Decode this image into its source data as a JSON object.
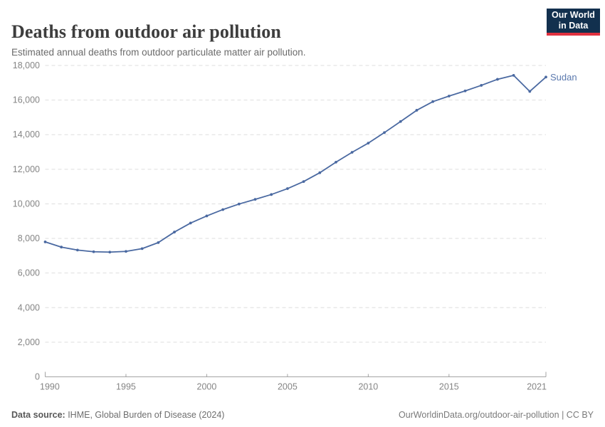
{
  "header": {
    "title": "Deaths from outdoor air pollution",
    "subtitle": "Estimated annual deaths from outdoor particulate matter air pollution."
  },
  "logo": {
    "line1": "Our World",
    "line2": "in Data"
  },
  "footer": {
    "datasource_label": "Data source:",
    "datasource_text": " IHME, Global Burden of Disease (2024)",
    "link_text": "OurWorldinData.org/outdoor-air-pollution",
    "separator": " | ",
    "license_text": "CC BY"
  },
  "colors": {
    "line": "#4a69a1",
    "marker": "#4a69a1",
    "entity_label": "#5b79ae",
    "grid": "#dedede",
    "axis": "#a3a3a3",
    "tick_label": "#858585",
    "logo_bg": "#12304e",
    "logo_accent": "#e0313f",
    "title_text": "#3d3d3d"
  },
  "chart_data": {
    "type": "line",
    "title": "Deaths from outdoor air pollution",
    "subtitle": "Estimated annual deaths from outdoor particulate matter air pollution.",
    "xlabel": "",
    "ylabel": "",
    "xlim": [
      1990,
      2021
    ],
    "ylim": [
      0,
      18000
    ],
    "x_ticks": [
      1990,
      1995,
      2000,
      2005,
      2010,
      2015,
      2021
    ],
    "y_ticks": [
      0,
      2000,
      4000,
      6000,
      8000,
      10000,
      12000,
      14000,
      16000,
      18000
    ],
    "grid": "horizontal-dashed",
    "legend": "inline-entity-label",
    "series": [
      {
        "name": "Sudan",
        "x": [
          1990,
          1991,
          1992,
          1993,
          1994,
          1995,
          1996,
          1997,
          1998,
          1999,
          2000,
          2001,
          2002,
          2003,
          2004,
          2005,
          2006,
          2007,
          2008,
          2009,
          2010,
          2011,
          2012,
          2013,
          2014,
          2015,
          2016,
          2017,
          2018,
          2019,
          2020,
          2021
        ],
        "values": [
          7800,
          7500,
          7330,
          7230,
          7210,
          7250,
          7410,
          7760,
          8370,
          8890,
          9300,
          9670,
          9990,
          10260,
          10540,
          10880,
          11290,
          11800,
          12410,
          12980,
          13510,
          14120,
          14760,
          15410,
          15910,
          16230,
          16530,
          16850,
          17200,
          17430,
          16500,
          17330
        ]
      }
    ]
  }
}
